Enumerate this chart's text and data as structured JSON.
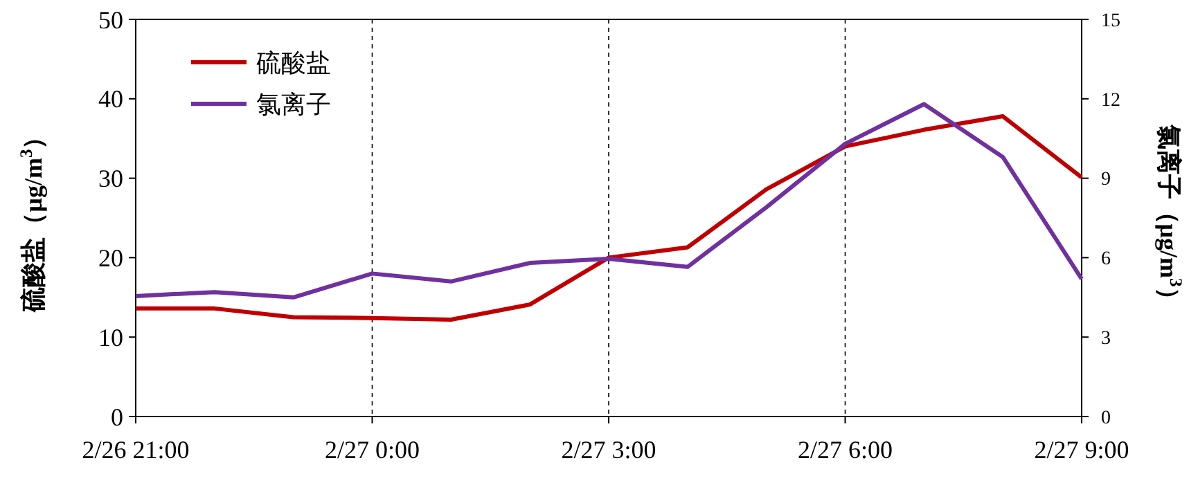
{
  "chart_data": {
    "type": "line",
    "categories": [
      "2/26 21:00",
      null,
      null,
      "2/27 0:00",
      null,
      null,
      "2/27 3:00",
      null,
      null,
      "2/27 6:00",
      null,
      null,
      "2/27 9:00"
    ],
    "ylim": [
      0,
      50
    ],
    "yticks": [
      0,
      10,
      20,
      30,
      40,
      50
    ],
    "y2lim": [
      0,
      15
    ],
    "y2ticks": [
      0,
      3,
      6,
      9,
      12,
      15
    ],
    "ylabel": "硫酸盐（μg/m$^{3}$）",
    "y2label": "氯离子（μg/m$^{3}$）",
    "grid": "x",
    "legend": "top left",
    "series": [
      {
        "name": "硫酸盐",
        "color": "#c00000",
        "values": [
          13.6,
          13.6,
          12.5,
          12.4,
          12.2,
          14.1,
          20.0,
          21.3,
          28.6,
          34.0,
          36.1,
          37.8,
          30.1
        ]
      },
      {
        "name": "氯离子",
        "color": "#7030a0",
        "axis": "y2",
        "values": [
          4.55,
          4.7,
          4.5,
          5.4,
          5.1,
          5.8,
          5.96,
          5.65,
          7.9,
          10.3,
          11.8,
          9.8,
          5.2
        ]
      }
    ]
  }
}
